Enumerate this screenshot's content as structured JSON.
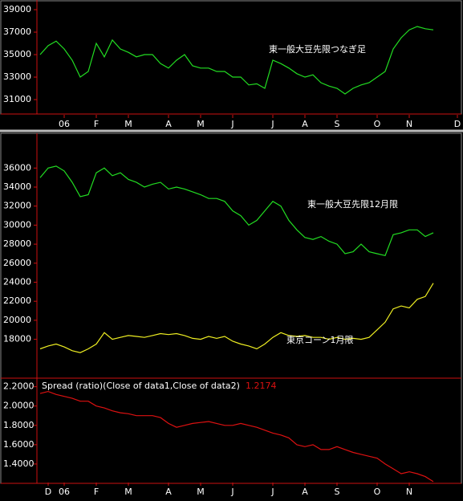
{
  "chart_data": [
    {
      "type": "line",
      "xlim": [
        -0.5,
        52.5
      ],
      "ylim": [
        29860,
        39860
      ],
      "yticks": [
        31000,
        33000,
        35000,
        37000,
        39000
      ],
      "xticks": [
        {
          "value": 3,
          "label": "06"
        },
        {
          "value": 7,
          "label": "F"
        },
        {
          "value": 11,
          "label": "M"
        },
        {
          "value": 16,
          "label": "A"
        },
        {
          "value": 20,
          "label": "M"
        },
        {
          "value": 24,
          "label": "J"
        },
        {
          "value": 29,
          "label": "J"
        },
        {
          "value": 33,
          "label": "A"
        },
        {
          "value": 37,
          "label": "S"
        },
        {
          "value": 42,
          "label": "O"
        },
        {
          "value": 46,
          "label": "N"
        },
        {
          "value": 52,
          "label": "D"
        }
      ],
      "series": [
        {
          "name": "東一般大豆先限つなぎ足",
          "color": "#22dd22",
          "values": [
            35000,
            35800,
            36200,
            35500,
            34500,
            33000,
            33500,
            36000,
            34800,
            36300,
            35500,
            35200,
            34800,
            35000,
            35000,
            34200,
            33800,
            34500,
            35000,
            34000,
            33800,
            33800,
            33500,
            33500,
            33000,
            33000,
            32300,
            32400,
            32000,
            34500,
            34200,
            33800,
            33300,
            33000,
            33200,
            32500,
            32200,
            32000,
            31500,
            32000,
            32300,
            32500,
            33000,
            33500,
            35500,
            36500,
            37200,
            37500,
            37300,
            37200
          ]
        }
      ]
    },
    {
      "type": "line",
      "xlim": [
        -0.5,
        52.5
      ],
      "ylim": [
        14000,
        39570
      ],
      "yticks": [
        18000,
        20000,
        22000,
        24000,
        26000,
        28000,
        30000,
        32000,
        34000,
        36000
      ],
      "series": [
        {
          "name": "東一般大豆先限12月限",
          "color": "#22dd22",
          "values": [
            35000,
            36000,
            36200,
            35700,
            34500,
            33000,
            33200,
            35500,
            36000,
            35200,
            35500,
            34800,
            34500,
            34000,
            34300,
            34500,
            33800,
            34000,
            33800,
            33500,
            33200,
            32800,
            32800,
            32500,
            31500,
            31000,
            30000,
            30500,
            31500,
            32500,
            32000,
            30500,
            29500,
            28700,
            28500,
            28800,
            28300,
            28000,
            27000,
            27200,
            28000,
            27200,
            27000,
            26800,
            29000,
            29200,
            29500,
            29500,
            28800,
            29200
          ]
        },
        {
          "name": "東京コーン1月限",
          "color": "#eeee22",
          "values": [
            17000,
            17300,
            17500,
            17200,
            16800,
            16600,
            17000,
            17500,
            18700,
            18000,
            18200,
            18400,
            18300,
            18200,
            18400,
            18600,
            18500,
            18600,
            18400,
            18100,
            18000,
            18300,
            18100,
            18300,
            17800,
            17500,
            17300,
            17000,
            17500,
            18200,
            18700,
            18400,
            18300,
            18400,
            18200,
            18200,
            18000,
            18200,
            18000,
            18100,
            18000,
            18200,
            19000,
            19800,
            21200,
            21500,
            21300,
            22200,
            22500,
            23900
          ]
        }
      ]
    },
    {
      "type": "line",
      "xlim": [
        -0.5,
        52.5
      ],
      "ylim": [
        1.2,
        2.28
      ],
      "yticks": [
        {
          "value": 1.4,
          "label": "1.4000"
        },
        {
          "value": 1.6,
          "label": "1.6000"
        },
        {
          "value": 1.8,
          "label": "1.8000"
        },
        {
          "value": 2.0,
          "label": "2.0000"
        },
        {
          "value": 2.2,
          "label": "2.2000"
        }
      ],
      "xticks": [
        {
          "value": 1,
          "label": "D"
        },
        {
          "value": 3,
          "label": "06"
        },
        {
          "value": 7,
          "label": "F"
        },
        {
          "value": 11,
          "label": "M"
        },
        {
          "value": 16,
          "label": "A"
        },
        {
          "value": 20,
          "label": "M"
        },
        {
          "value": 24,
          "label": "J"
        },
        {
          "value": 29,
          "label": "J"
        },
        {
          "value": 33,
          "label": "A"
        },
        {
          "value": 37,
          "label": "S"
        },
        {
          "value": 42,
          "label": "O"
        },
        {
          "value": 46,
          "label": "N"
        }
      ],
      "series": [
        {
          "name": "Spread (ratio)(Close of data1,Close of data2)",
          "color": "#dd1111",
          "values": [
            2.13,
            2.15,
            2.12,
            2.1,
            2.08,
            2.05,
            2.05,
            2.0,
            1.98,
            1.95,
            1.93,
            1.92,
            1.9,
            1.9,
            1.9,
            1.88,
            1.82,
            1.78,
            1.8,
            1.82,
            1.83,
            1.84,
            1.82,
            1.8,
            1.8,
            1.82,
            1.8,
            1.78,
            1.75,
            1.72,
            1.7,
            1.67,
            1.6,
            1.58,
            1.6,
            1.55,
            1.55,
            1.58,
            1.55,
            1.52,
            1.5,
            1.48,
            1.46,
            1.4,
            1.35,
            1.3,
            1.32,
            1.3,
            1.27,
            1.2174
          ]
        }
      ]
    }
  ]
}
